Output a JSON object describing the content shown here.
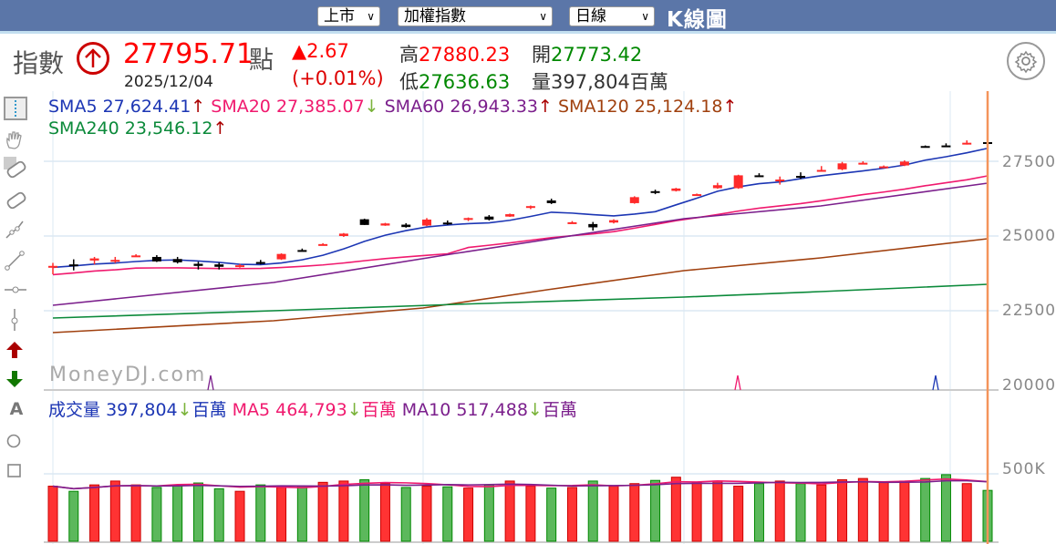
{
  "header": {
    "market_select": "上市",
    "index_select": "加權指數",
    "period_select": "日線",
    "title": "K線圖"
  },
  "quote": {
    "label": "指數",
    "price": "27795.71",
    "unit": "點",
    "date": "2025/12/04",
    "change": "▲2.67",
    "change_pct": "(+0.01%)",
    "high_label": "高",
    "high": "27880.23",
    "low_label": "低",
    "low": "27636.63",
    "open_label": "開",
    "open": "27773.42",
    "volume_label": "量",
    "volume": "397,804百萬"
  },
  "legend_price": [
    {
      "name": "SMA5",
      "value": "27,624.41",
      "dir": "↑",
      "color": "#1c36b4"
    },
    {
      "name": "SMA20",
      "value": "27,385.07",
      "dir": "↓",
      "color": "#f0196e"
    },
    {
      "name": "SMA60",
      "value": "26,943.33",
      "dir": "↑",
      "color": "#7b1f8c"
    },
    {
      "name": "SMA120",
      "value": "25,124.18",
      "dir": "↑",
      "color": "#a0400e"
    },
    {
      "name": "SMA240",
      "value": "23,546.12",
      "dir": "↑",
      "color": "#0b8a3a"
    }
  ],
  "legend_volume": [
    {
      "name": "成交量",
      "value": "397,804",
      "dir": "↓",
      "unit": "百萬",
      "color": "#1c36b4"
    },
    {
      "name": "MA5",
      "value": "464,793",
      "dir": "↓",
      "unit": "百萬",
      "color": "#f0196e"
    },
    {
      "name": "MA10",
      "value": "517,488",
      "dir": "↓",
      "unit": "百萬",
      "color": "#7b1f8c"
    }
  ],
  "watermark": "MoneyDJ.com",
  "colors": {
    "up": "#ff2a2a",
    "down": "#000000",
    "vol_up": "#ff3333",
    "vol_down": "#5cb85c",
    "cursor": "#f4945a",
    "grid": "#dbe8f3"
  },
  "chart_data": {
    "type": "candlestick",
    "title": "加權指數 K線圖 (日線)",
    "y_ticks": [
      27500,
      25000,
      22500,
      20000
    ],
    "volume_ticks": [
      "500K"
    ],
    "ylim": [
      19900,
      28600
    ],
    "candles": [
      [
        24000,
        23950,
        24100,
        23720,
        1
      ],
      [
        24000,
        24050,
        24220,
        23850,
        0
      ],
      [
        24250,
        24180,
        24300,
        24050,
        1
      ],
      [
        24200,
        24200,
        24300,
        24100,
        1
      ],
      [
        24320,
        24350,
        24390,
        24300,
        1
      ],
      [
        24300,
        24150,
        24360,
        24130,
        0
      ],
      [
        24230,
        24120,
        24300,
        24080,
        0
      ],
      [
        24070,
        24000,
        24140,
        23880,
        0
      ],
      [
        24050,
        23970,
        24110,
        23880,
        0
      ],
      [
        24000,
        24020,
        24060,
        23940,
        1
      ],
      [
        24130,
        24100,
        24200,
        24050,
        0
      ],
      [
        24220,
        24400,
        24420,
        24200,
        1
      ],
      [
        24530,
        24530,
        24580,
        24500,
        0
      ],
      [
        24700,
        24730,
        24760,
        24680,
        1
      ],
      [
        25000,
        25080,
        25100,
        24970,
        1
      ],
      [
        25560,
        25370,
        25580,
        25370,
        0
      ],
      [
        25350,
        25420,
        25440,
        25340,
        1
      ],
      [
        25380,
        25300,
        25430,
        25280,
        0
      ],
      [
        25550,
        25350,
        25600,
        25330,
        1
      ],
      [
        25450,
        25400,
        25520,
        25370,
        0
      ],
      [
        25550,
        25600,
        25620,
        25500,
        1
      ],
      [
        25650,
        25550,
        25700,
        25520,
        0
      ],
      [
        25650,
        25730,
        25750,
        25640,
        1
      ],
      [
        25950,
        26000,
        26020,
        25900,
        1
      ],
      [
        26190,
        26100,
        26250,
        26070,
        0
      ],
      [
        25460,
        25450,
        25500,
        25420,
        1
      ],
      [
        25400,
        25290,
        25470,
        25180,
        0
      ],
      [
        25450,
        25530,
        25560,
        25420,
        1
      ],
      [
        26100,
        26300,
        26330,
        26080,
        1
      ],
      [
        26450,
        26500,
        26550,
        26400,
        0
      ],
      [
        26510,
        26590,
        26610,
        26490,
        1
      ],
      [
        26400,
        26400,
        26420,
        26380,
        1
      ],
      [
        26600,
        26700,
        26780,
        26580,
        1
      ],
      [
        26600,
        27030,
        27050,
        26580,
        1
      ],
      [
        27020,
        27030,
        27100,
        26980,
        0
      ],
      [
        26890,
        26880,
        26990,
        26720,
        1
      ],
      [
        27010,
        26960,
        27130,
        26910,
        0
      ],
      [
        27210,
        27190,
        27340,
        27150,
        1
      ],
      [
        27230,
        27430,
        27480,
        27200,
        1
      ],
      [
        27450,
        27430,
        27500,
        27400,
        1
      ],
      [
        27310,
        27330,
        27360,
        27270,
        1
      ],
      [
        27360,
        27490,
        27530,
        27340,
        1
      ],
      [
        28000,
        28010,
        28030,
        27980,
        0
      ],
      [
        28030,
        28000,
        28100,
        27980,
        0
      ],
      [
        28120,
        28090,
        28200,
        28060,
        1
      ],
      [
        28140,
        28080,
        28210,
        28060,
        0
      ]
    ],
    "series": [
      {
        "name": "SMA5",
        "color": "#1c36b4"
      },
      {
        "name": "SMA20",
        "color": "#f0196e"
      },
      {
        "name": "SMA60",
        "color": "#7b1f8c"
      },
      {
        "name": "SMA120",
        "color": "#a0400e"
      },
      {
        "name": "SMA240",
        "color": "#0b8a3a"
      }
    ],
    "note": "Approximate OHLC read off pixel positions; columns = [open, close, high, low, up(1)/down(0)]"
  }
}
